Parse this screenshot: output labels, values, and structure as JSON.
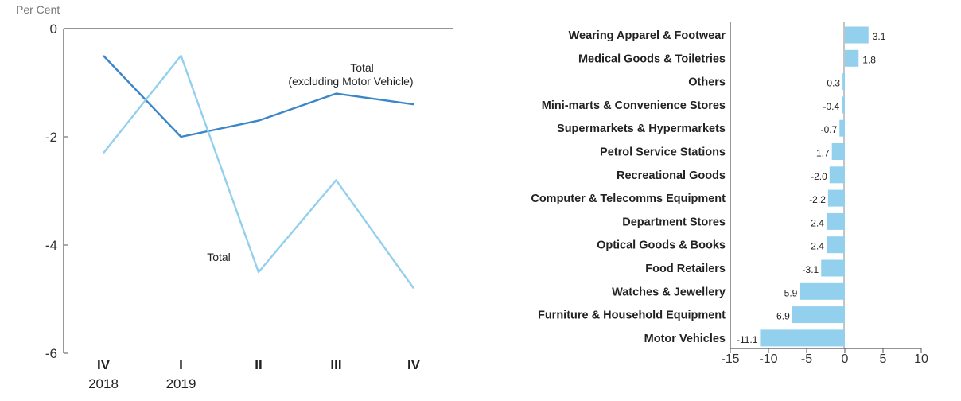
{
  "chart_data": [
    {
      "type": "line",
      "ylabel": "Per Cent",
      "ylim": [
        -6,
        0
      ],
      "yticks": [
        0,
        -2,
        -4,
        -6
      ],
      "categories": [
        "IV",
        "I",
        "II",
        "III",
        "IV"
      ],
      "year_labels": [
        "2018",
        "2019",
        "",
        "",
        ""
      ],
      "series": [
        {
          "name": "Total (excluding Motor Vehicle)",
          "values": [
            -0.5,
            -2.0,
            -1.7,
            -1.2,
            -1.4
          ],
          "color": "#3a86c8"
        },
        {
          "name": "Total",
          "values": [
            -2.3,
            -0.5,
            -4.5,
            -2.8,
            -4.8
          ],
          "color": "#93d0ee"
        }
      ],
      "annotations": [
        {
          "text": "Total",
          "series": 0
        },
        {
          "text": "(excluding Motor Vehicle)",
          "series": 0
        },
        {
          "text": "Total",
          "series": 1
        }
      ]
    },
    {
      "type": "bar",
      "orientation": "horizontal",
      "categories": [
        "Wearing Apparel & Footwear",
        "Medical Goods & Toiletries",
        "Others",
        "Mini-marts & Convenience Stores",
        "Supermarkets & Hypermarkets",
        "Petrol Service Stations",
        "Recreational Goods",
        "Computer & Telecomms Equipment",
        "Department Stores",
        "Optical Goods & Books",
        "Food Retailers",
        "Watches & Jewellery",
        "Furniture & Household Equipment",
        "Motor Vehicles"
      ],
      "values": [
        3.1,
        1.8,
        -0.3,
        -0.4,
        -0.7,
        -1.7,
        -2.0,
        -2.2,
        -2.4,
        -2.4,
        -3.1,
        -5.9,
        -6.9,
        -11.1
      ],
      "value_labels": [
        "3.1",
        "1.8",
        "-0.3",
        "-0.4",
        "-0.7",
        "-1.7",
        "-2.0",
        "-2.2",
        "-2.4",
        "-2.4",
        "-3.1",
        "-5.9",
        "-6.9",
        "-11.1"
      ],
      "xlim": [
        -15,
        10
      ],
      "xticks": [
        -15,
        -10,
        -5,
        0,
        5,
        10
      ],
      "bar_color": "#93d0ee"
    }
  ]
}
